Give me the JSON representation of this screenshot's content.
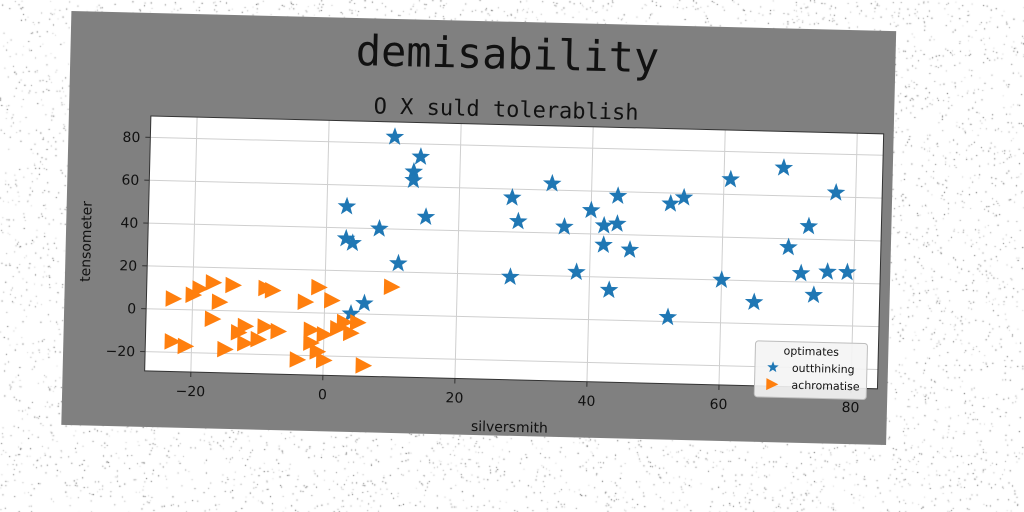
{
  "chart_data": {
    "type": "scatter",
    "title": "demisability",
    "subtitle": "O X suld tolerablish",
    "xlabel": "silversmith",
    "ylabel": "tensometer",
    "xlim": [
      -27,
      84
    ],
    "ylim": [
      -29,
      90
    ],
    "xticks": [
      -20,
      0,
      20,
      40,
      60,
      80
    ],
    "yticks": [
      -20,
      0,
      20,
      40,
      60,
      80
    ],
    "grid": true,
    "legend": {
      "title": "optimates",
      "placement": "lower-right"
    },
    "colors": {
      "panel": "#808080",
      "plot_bg": "#ffffff",
      "grid": "#cfcfcf"
    },
    "series": [
      {
        "name": "outthinking",
        "marker": "star",
        "color": "#1f77b4",
        "points": [
          [
            10,
            83
          ],
          [
            14,
            74
          ],
          [
            13,
            67
          ],
          [
            13,
            63
          ],
          [
            15,
            46
          ],
          [
            3,
            50
          ],
          [
            3,
            35
          ],
          [
            4,
            33
          ],
          [
            8,
            40
          ],
          [
            11,
            24
          ],
          [
            6,
            5
          ],
          [
            4,
            0
          ],
          [
            28,
            56
          ],
          [
            29,
            45
          ],
          [
            34,
            63
          ],
          [
            36,
            43
          ],
          [
            28,
            19
          ],
          [
            38,
            22
          ],
          [
            40,
            51
          ],
          [
            42,
            44
          ],
          [
            42,
            35
          ],
          [
            44,
            58
          ],
          [
            44,
            45
          ],
          [
            46,
            33
          ],
          [
            43,
            14
          ],
          [
            52,
            55
          ],
          [
            54,
            58
          ],
          [
            52,
            2
          ],
          [
            61,
            67
          ],
          [
            60,
            20
          ],
          [
            65,
            10
          ],
          [
            69,
            73
          ],
          [
            70,
            36
          ],
          [
            73,
            46
          ],
          [
            72,
            24
          ],
          [
            74,
            14
          ],
          [
            77,
            62
          ],
          [
            76,
            25
          ],
          [
            79,
            25
          ]
        ]
      },
      {
        "name": "achromatise",
        "marker": "triangle-right",
        "color": "#ff7f0e",
        "points": [
          [
            -23,
            5
          ],
          [
            -20,
            7
          ],
          [
            -19,
            10
          ],
          [
            -17,
            13
          ],
          [
            -14,
            12
          ],
          [
            -16,
            4
          ],
          [
            -9,
            11
          ],
          [
            -8,
            10
          ],
          [
            -3,
            5
          ],
          [
            -1,
            12
          ],
          [
            1,
            6
          ],
          [
            -17,
            -4
          ],
          [
            -13,
            -10
          ],
          [
            -12,
            -7
          ],
          [
            -9,
            -7
          ],
          [
            -7,
            -9
          ],
          [
            -10,
            -13
          ],
          [
            -12,
            -15
          ],
          [
            -15,
            -18
          ],
          [
            -23,
            -15
          ],
          [
            -21,
            -17
          ],
          [
            -2,
            -8
          ],
          [
            0,
            -10
          ],
          [
            2,
            -7
          ],
          [
            3,
            -4
          ],
          [
            5,
            -4
          ],
          [
            4,
            -9
          ],
          [
            -2,
            -14
          ],
          [
            -1,
            -18
          ],
          [
            0,
            -22
          ],
          [
            -4,
            -22
          ],
          [
            6,
            -24
          ],
          [
            10,
            13
          ]
        ]
      }
    ]
  }
}
